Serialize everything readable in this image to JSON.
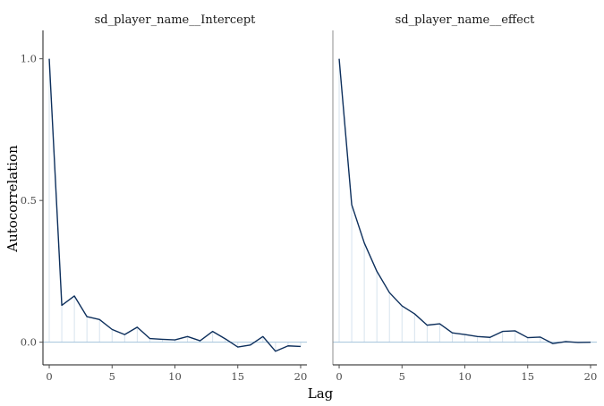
{
  "chart_data": {
    "type": "line",
    "xlabel": "Lag",
    "ylabel": "Autocorrelation",
    "xlim": [
      -0.5,
      20.5
    ],
    "ylim": [
      -0.08,
      1.1
    ],
    "x_ticks": [
      "0",
      "5",
      "10",
      "15",
      "20"
    ],
    "y_ticks": [
      "0.0",
      "0.5",
      "1.0"
    ],
    "grid": false,
    "colors": {
      "line": "#0d2f5c",
      "zero_line": "#a3c2dc",
      "spike": "#d6e3ee",
      "axis": "#1a1a1a"
    },
    "panels": [
      {
        "title": "sd_player_name__Intercept",
        "lags": [
          0,
          1,
          2,
          3,
          4,
          5,
          6,
          7,
          8,
          9,
          10,
          11,
          12,
          13,
          14,
          15,
          16,
          17,
          18,
          19,
          20
        ],
        "values": [
          1.0,
          0.13,
          0.163,
          0.09,
          0.08,
          0.045,
          0.027,
          0.053,
          0.013,
          0.01,
          0.008,
          0.02,
          0.005,
          0.038,
          0.012,
          -0.017,
          -0.01,
          0.02,
          -0.032,
          -0.013,
          -0.015
        ]
      },
      {
        "title": "sd_player_name__effect",
        "lags": [
          0,
          1,
          2,
          3,
          4,
          5,
          6,
          7,
          8,
          9,
          10,
          11,
          12,
          13,
          14,
          15,
          16,
          17,
          18,
          19,
          20
        ],
        "values": [
          1.0,
          0.485,
          0.35,
          0.25,
          0.175,
          0.128,
          0.1,
          0.06,
          0.065,
          0.033,
          0.027,
          0.02,
          0.017,
          0.038,
          0.04,
          0.016,
          0.018,
          -0.005,
          0.002,
          -0.001,
          0.0
        ]
      }
    ]
  }
}
